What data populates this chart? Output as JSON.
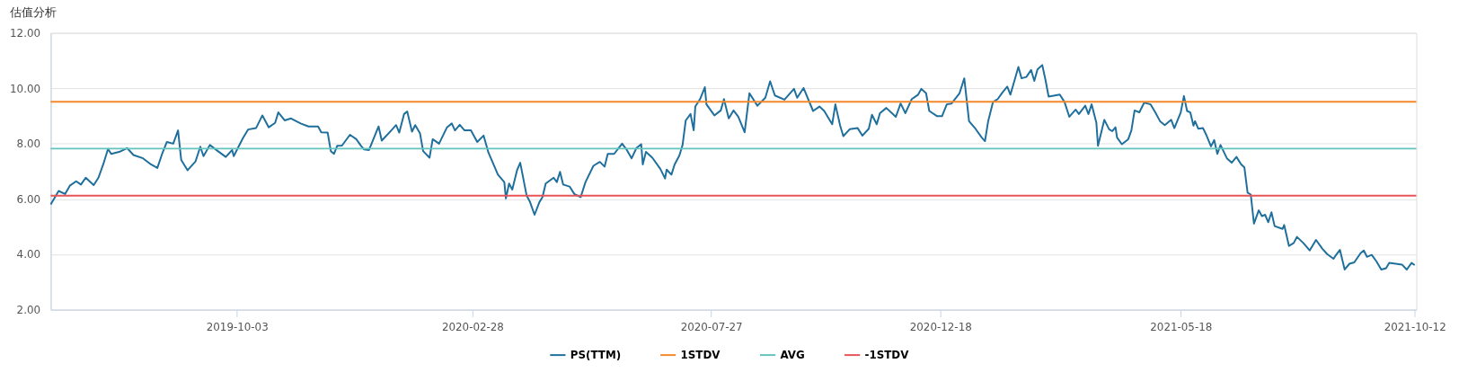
{
  "chart_data": {
    "type": "line",
    "title": "估值分析",
    "x": [
      "2019-06-08",
      "2019-06-13",
      "2019-06-17",
      "2019-06-20",
      "2019-06-24",
      "2019-06-27",
      "2019-06-30",
      "2019-07-05",
      "2019-07-08",
      "2019-07-11",
      "2019-07-14",
      "2019-07-16",
      "2019-07-21",
      "2019-07-26",
      "2019-07-30",
      "2019-08-05",
      "2019-08-10",
      "2019-08-14",
      "2019-08-17",
      "2019-08-20",
      "2019-08-24",
      "2019-08-27",
      "2019-08-29",
      "2019-09-02",
      "2019-09-07",
      "2019-09-10",
      "2019-09-12",
      "2019-09-16",
      "2019-09-21",
      "2019-09-26",
      "2019-09-30",
      "2019-10-01",
      "2019-10-04",
      "2019-10-07",
      "2019-10-10",
      "2019-10-15",
      "2019-10-19",
      "2019-10-23",
      "2019-10-27",
      "2019-10-29",
      "2019-11-02",
      "2019-11-06",
      "2019-11-12",
      "2019-11-17",
      "2019-11-23",
      "2019-11-25",
      "2019-11-29",
      "2019-12-01",
      "2019-12-03",
      "2019-12-05",
      "2019-12-08",
      "2019-12-13",
      "2019-12-17",
      "2019-12-20",
      "2019-12-22",
      "2019-12-25",
      "2019-12-31",
      "2020-01-02",
      "2020-01-08",
      "2020-01-11",
      "2020-01-13",
      "2020-01-16",
      "2020-01-18",
      "2020-01-21",
      "2020-01-23",
      "2020-01-26",
      "2020-01-28",
      "2020-02-01",
      "2020-02-03",
      "2020-02-07",
      "2020-02-12",
      "2020-02-15",
      "2020-02-17",
      "2020-02-20",
      "2020-02-23",
      "2020-02-27",
      "2020-03-02",
      "2020-03-06",
      "2020-03-09",
      "2020-03-15",
      "2020-03-19",
      "2020-03-20",
      "2020-03-22",
      "2020-03-24",
      "2020-03-27",
      "2020-03-29",
      "2020-04-02",
      "2020-04-04",
      "2020-04-07",
      "2020-04-10",
      "2020-04-12",
      "2020-04-14",
      "2020-04-19",
      "2020-04-21",
      "2020-04-23",
      "2020-04-25",
      "2020-04-29",
      "2020-05-02",
      "2020-05-06",
      "2020-05-09",
      "2020-05-14",
      "2020-05-18",
      "2020-05-21",
      "2020-05-23",
      "2020-05-27",
      "2020-06-01",
      "2020-06-04",
      "2020-06-07",
      "2020-06-10",
      "2020-06-13",
      "2020-06-14",
      "2020-06-16",
      "2020-06-20",
      "2020-06-25",
      "2020-06-28",
      "2020-06-29",
      "2020-07-02",
      "2020-07-04",
      "2020-07-07",
      "2020-07-09",
      "2020-07-11",
      "2020-07-14",
      "2020-07-16",
      "2020-07-17",
      "2020-07-20",
      "2020-07-23",
      "2020-07-24",
      "2020-07-29",
      "2020-08-02",
      "2020-08-04",
      "2020-08-07",
      "2020-08-10",
      "2020-08-13",
      "2020-08-17",
      "2020-08-20",
      "2020-08-25",
      "2020-08-30",
      "2020-09-02",
      "2020-09-05",
      "2020-09-11",
      "2020-09-17",
      "2020-09-19",
      "2020-09-23",
      "2020-09-29",
      "2020-10-03",
      "2020-10-06",
      "2020-10-11",
      "2020-10-13",
      "2020-10-16",
      "2020-10-18",
      "2020-10-22",
      "2020-10-27",
      "2020-10-30",
      "2020-11-03",
      "2020-11-05",
      "2020-11-08",
      "2020-11-10",
      "2020-11-14",
      "2020-11-20",
      "2020-11-23",
      "2020-11-26",
      "2020-11-30",
      "2020-12-04",
      "2020-12-06",
      "2020-12-09",
      "2020-12-11",
      "2020-12-16",
      "2020-12-19",
      "2020-12-22",
      "2020-12-25",
      "2020-12-30",
      "2021-01-02",
      "2021-01-05",
      "2021-01-09",
      "2021-01-13",
      "2021-01-15",
      "2021-01-17",
      "2021-01-20",
      "2021-01-23",
      "2021-01-26",
      "2021-01-29",
      "2021-01-31",
      "2021-02-05",
      "2021-02-07",
      "2021-02-10",
      "2021-02-13",
      "2021-02-15",
      "2021-02-17",
      "2021-02-20",
      "2021-02-22",
      "2021-02-24",
      "2021-03-03",
      "2021-03-06",
      "2021-03-09",
      "2021-03-13",
      "2021-03-15",
      "2021-03-19",
      "2021-03-21",
      "2021-03-23",
      "2021-03-26",
      "2021-03-27",
      "2021-03-31",
      "2021-04-03",
      "2021-04-05",
      "2021-04-07",
      "2021-04-08",
      "2021-04-11",
      "2021-04-15",
      "2021-04-17",
      "2021-04-19",
      "2021-04-22",
      "2021-04-25",
      "2021-04-29",
      "2021-05-02",
      "2021-05-05",
      "2021-05-08",
      "2021-05-12",
      "2021-05-14",
      "2021-05-18",
      "2021-05-20",
      "2021-05-22",
      "2021-05-24",
      "2021-05-26",
      "2021-05-27",
      "2021-05-29",
      "2021-06-01",
      "2021-06-03",
      "2021-06-06",
      "2021-06-08",
      "2021-06-10",
      "2021-06-12",
      "2021-06-16",
      "2021-06-19",
      "2021-06-22",
      "2021-06-25",
      "2021-06-27",
      "2021-06-29",
      "2021-07-01",
      "2021-07-03",
      "2021-07-06",
      "2021-07-08",
      "2021-07-10",
      "2021-07-12",
      "2021-07-14",
      "2021-07-16",
      "2021-07-21",
      "2021-07-22",
      "2021-07-25",
      "2021-07-28",
      "2021-07-30",
      "2021-08-03",
      "2021-08-07",
      "2021-08-11",
      "2021-08-15",
      "2021-08-18",
      "2021-08-22",
      "2021-08-23",
      "2021-08-26",
      "2021-08-29",
      "2021-09-01",
      "2021-09-04",
      "2021-09-08",
      "2021-09-10",
      "2021-09-12",
      "2021-09-15",
      "2021-09-18",
      "2021-09-21",
      "2021-09-24",
      "2021-09-26",
      "2021-09-30",
      "2021-10-04",
      "2021-10-07",
      "2021-10-10",
      "2021-10-12"
    ],
    "series": [
      {
        "name": "PS(TTM)",
        "color": "#1f6f9c",
        "values": [
          5.8,
          6.29,
          6.18,
          6.48,
          6.64,
          6.52,
          6.77,
          6.5,
          6.77,
          7.25,
          7.81,
          7.63,
          7.7,
          7.84,
          7.59,
          7.47,
          7.25,
          7.12,
          7.63,
          8.06,
          8.0,
          8.48,
          7.41,
          7.04,
          7.36,
          7.89,
          7.55,
          7.95,
          7.73,
          7.52,
          7.77,
          7.55,
          7.89,
          8.22,
          8.51,
          8.56,
          9.02,
          8.59,
          8.75,
          9.13,
          8.84,
          8.91,
          8.73,
          8.62,
          8.62,
          8.41,
          8.4,
          7.73,
          7.63,
          7.92,
          7.93,
          8.32,
          8.16,
          7.92,
          7.79,
          7.77,
          8.62,
          8.11,
          8.48,
          8.67,
          8.4,
          9.07,
          9.16,
          8.43,
          8.67,
          8.38,
          7.73,
          7.49,
          8.16,
          8.0,
          8.59,
          8.73,
          8.48,
          8.68,
          8.48,
          8.48,
          8.06,
          8.29,
          7.68,
          6.88,
          6.61,
          6.02,
          6.56,
          6.34,
          7.04,
          7.31,
          6.13,
          5.91,
          5.43,
          5.88,
          6.07,
          6.56,
          6.77,
          6.61,
          6.98,
          6.52,
          6.45,
          6.18,
          6.07,
          6.61,
          7.2,
          7.34,
          7.17,
          7.63,
          7.63,
          8.0,
          7.77,
          7.47,
          7.84,
          7.98,
          7.25,
          7.7,
          7.49,
          7.09,
          6.74,
          7.06,
          6.88,
          7.25,
          7.57,
          7.95,
          8.84,
          9.07,
          8.48,
          9.34,
          9.61,
          10.04,
          9.42,
          9.02,
          9.2,
          9.61,
          8.91,
          9.2,
          8.97,
          8.41,
          9.82,
          9.37,
          9.66,
          10.25,
          9.74,
          9.59,
          9.98,
          9.66,
          10.01,
          9.18,
          9.34,
          9.18,
          8.7,
          9.42,
          8.65,
          8.27,
          8.52,
          8.56,
          8.29,
          8.54,
          9.04,
          8.7,
          9.1,
          9.29,
          8.97,
          9.45,
          9.1,
          9.61,
          9.77,
          9.98,
          9.82,
          9.18,
          8.99,
          8.99,
          9.42,
          9.45,
          9.82,
          10.36,
          8.81,
          8.54,
          8.22,
          8.09,
          8.81,
          9.5,
          9.61,
          9.85,
          10.06,
          9.77,
          10.77,
          10.36,
          10.41,
          10.66,
          10.27,
          10.68,
          10.84,
          10.31,
          9.7,
          9.77,
          9.5,
          8.97,
          9.23,
          9.07,
          9.37,
          9.07,
          9.42,
          8.75,
          7.92,
          8.86,
          8.52,
          8.45,
          8.59,
          8.22,
          7.98,
          8.16,
          8.48,
          9.2,
          9.13,
          9.48,
          9.42,
          9.13,
          8.81,
          8.67,
          8.86,
          8.56,
          9.13,
          9.72,
          9.18,
          9.13,
          8.65,
          8.81,
          8.54,
          8.56,
          8.32,
          7.9,
          8.13,
          7.63,
          7.95,
          7.47,
          7.31,
          7.52,
          7.25,
          7.14,
          6.23,
          6.16,
          5.11,
          5.59,
          5.38,
          5.43,
          5.16,
          5.52,
          5.02,
          4.92,
          5.06,
          4.3,
          4.41,
          4.63,
          4.41,
          4.14,
          4.52,
          4.2,
          4.01,
          3.84,
          3.93,
          4.16,
          3.45,
          3.66,
          3.71,
          4.04,
          4.14,
          3.91,
          3.98,
          3.74,
          3.45,
          3.5,
          3.69,
          3.66,
          3.63,
          3.45,
          3.69,
          3.61
        ]
      }
    ],
    "ref_lines": [
      {
        "axis": "y",
        "value": 9.51,
        "label": "1STDV",
        "color": "#f5882a"
      },
      {
        "axis": "y",
        "value": 7.82,
        "label": "AVG",
        "color": "#62c3bd"
      },
      {
        "axis": "y",
        "value": 6.12,
        "label": "-1STDV",
        "color": "#e85358"
      }
    ],
    "xlim": [
      "2019-06-08",
      "2021-10-13"
    ],
    "xticks": [
      "2019-10-03",
      "2020-02-28",
      "2020-07-27",
      "2020-12-18",
      "2021-05-18",
      "2021-10-12"
    ],
    "ylim": [
      2,
      12
    ],
    "yticks": [
      {
        "value": 2,
        "label": "2.00"
      },
      {
        "value": 4,
        "label": "4.00"
      },
      {
        "value": 6,
        "label": "6.00"
      },
      {
        "value": 8,
        "label": "8.00"
      },
      {
        "value": 10,
        "label": "10.00"
      },
      {
        "value": 12,
        "label": "12.00"
      }
    ],
    "grid": "y",
    "legend": "bottom",
    "marker": "none",
    "line_style": "solid"
  }
}
